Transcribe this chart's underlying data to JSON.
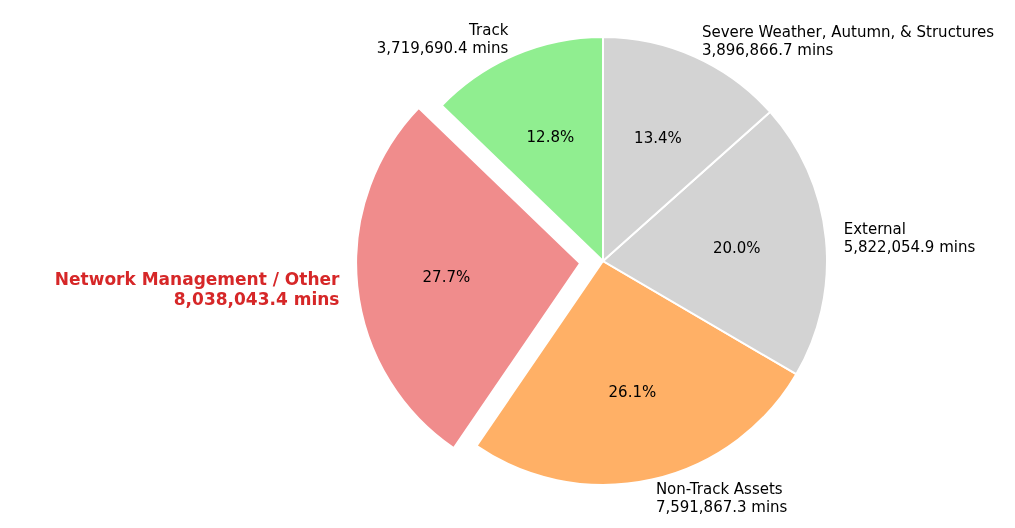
{
  "chart_data": {
    "type": "pie",
    "categories": [
      "Track",
      "Network Management / Other",
      "Non-Track Assets",
      "External",
      "Severe Weather, Autumn,  & Structures"
    ],
    "values": [
      3719690.4,
      8038043.4,
      7591867.3,
      5822054.9,
      3896866.7
    ],
    "colors": [
      "#90ee90",
      "#f08c8c",
      "#ffb066",
      "#d3d3d3",
      "#d3d3d3"
    ],
    "value_labels": [
      "3,719,690.4 mins",
      "8,038,043.4 mins",
      "7,591,867.3 mins",
      "5,822,054.9 mins",
      "3,896,866.7 mins"
    ],
    "annotations": [
      "12.8%",
      "27.7%",
      "26.1%",
      "20.0%",
      "13.4%"
    ]
  }
}
